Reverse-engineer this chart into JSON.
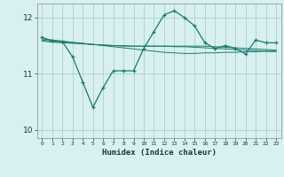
{
  "x": [
    0,
    1,
    2,
    3,
    4,
    5,
    6,
    7,
    8,
    9,
    10,
    11,
    12,
    13,
    14,
    15,
    16,
    17,
    18,
    19,
    20,
    21,
    22,
    23
  ],
  "y_main": [
    11.65,
    11.58,
    11.57,
    11.3,
    10.85,
    10.4,
    10.75,
    11.05,
    11.05,
    11.05,
    11.45,
    11.75,
    12.05,
    12.12,
    12.0,
    11.85,
    11.55,
    11.45,
    11.5,
    11.45,
    11.35,
    11.6,
    11.55,
    11.55
  ],
  "y_reg1": [
    11.62,
    11.6,
    11.58,
    11.56,
    11.54,
    11.52,
    11.5,
    11.48,
    11.46,
    11.44,
    11.42,
    11.4,
    11.38,
    11.37,
    11.36,
    11.36,
    11.37,
    11.37,
    11.38,
    11.38,
    11.39,
    11.39,
    11.4,
    11.4
  ],
  "y_reg2": [
    11.6,
    11.58,
    11.57,
    11.55,
    11.54,
    11.52,
    11.51,
    11.5,
    11.49,
    11.49,
    11.49,
    11.49,
    11.49,
    11.49,
    11.49,
    11.49,
    11.49,
    11.48,
    11.47,
    11.46,
    11.45,
    11.44,
    11.43,
    11.42
  ],
  "y_reg3": [
    11.58,
    11.56,
    11.55,
    11.54,
    11.53,
    11.52,
    11.51,
    11.5,
    11.5,
    11.49,
    11.49,
    11.49,
    11.49,
    11.48,
    11.48,
    11.47,
    11.46,
    11.45,
    11.44,
    11.43,
    11.42,
    11.41,
    11.4,
    11.39
  ],
  "line_color": "#1a7a6e",
  "bg_color": "#d8f0f0",
  "grid_color": "#c0dede",
  "grid_color_major": "#b0cece",
  "xlabel": "Humidex (Indice chaleur)",
  "ylim": [
    9.85,
    12.25
  ],
  "xlim": [
    -0.5,
    23.5
  ]
}
